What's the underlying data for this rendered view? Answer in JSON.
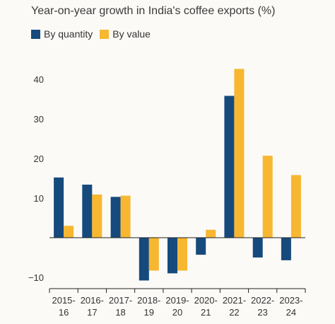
{
  "title": "Year-on-year growth in India's coffee exports (%)",
  "chart_data": {
    "type": "bar",
    "title": "Year-on-year growth in India's coffee exports (%)",
    "categories": [
      [
        "2015-",
        "16"
      ],
      [
        "2016-",
        "17"
      ],
      [
        "2017-",
        "18"
      ],
      [
        "2018-",
        "19"
      ],
      [
        "2019-",
        "20"
      ],
      [
        "2020-",
        "21"
      ],
      [
        "2021-",
        "22"
      ],
      [
        "2022-",
        "23"
      ],
      [
        "2023-",
        "24"
      ]
    ],
    "series": [
      {
        "name": "By quantity",
        "color": "#174a7c",
        "values": [
          15.2,
          13.4,
          10.3,
          -10.8,
          -9.0,
          -4.3,
          35.8,
          -5.0,
          -5.7
        ]
      },
      {
        "name": "By value",
        "color": "#f7b731",
        "values": [
          3.0,
          10.9,
          10.6,
          -8.3,
          -8.3,
          2.0,
          42.6,
          20.7,
          15.8
        ]
      }
    ],
    "yticks": [
      -10,
      10,
      20,
      30,
      40
    ],
    "ylim": [
      -14,
      48
    ],
    "grid": false,
    "legend": "top-left"
  }
}
